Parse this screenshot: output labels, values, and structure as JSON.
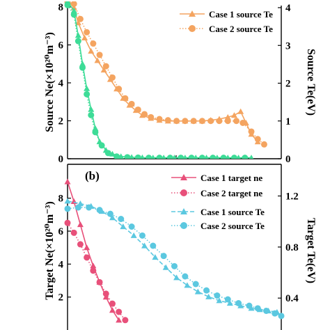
{
  "chart_data": [
    {
      "panel": "a",
      "type": "line",
      "title": "",
      "ylabel_left": "Source Ne(×10²⁰m⁻³)",
      "ylabel_right": "Source Te(eV)",
      "ylim_left": [
        0,
        8
      ],
      "ylim_right": [
        0,
        4
      ],
      "yticks_left": [
        "0",
        "2",
        "4",
        "6",
        "8"
      ],
      "yticks_right": [
        "0",
        "1",
        "2",
        "3",
        "4"
      ],
      "xlim": [
        0,
        1
      ],
      "legend": [
        {
          "label": "Case 1 source Te",
          "color": "#F4A460",
          "marker": "triangle",
          "dash": "solid"
        },
        {
          "label": "Case 2 source Te",
          "color": "#F4A460",
          "marker": "circle",
          "dash": "dotted"
        }
      ],
      "series": [
        {
          "axis": "right",
          "color": "#F4A460",
          "marker": "triangle",
          "dash": "solid",
          "points": [
            [
              0.0,
              4.2
            ],
            [
              0.03,
              4.0
            ],
            [
              0.05,
              3.6
            ],
            [
              0.08,
              3.2
            ],
            [
              0.11,
              2.85
            ],
            [
              0.14,
              2.6
            ],
            [
              0.17,
              2.35
            ],
            [
              0.2,
              2.1
            ],
            [
              0.23,
              1.85
            ],
            [
              0.26,
              1.6
            ],
            [
              0.29,
              1.42
            ],
            [
              0.32,
              1.28
            ],
            [
              0.35,
              1.15
            ],
            [
              0.39,
              1.07
            ],
            [
              0.43,
              1.02
            ],
            [
              0.47,
              1.0
            ],
            [
              0.51,
              1.0
            ],
            [
              0.55,
              1.0
            ],
            [
              0.59,
              1.0
            ],
            [
              0.63,
              1.0
            ],
            [
              0.67,
              1.02
            ],
            [
              0.71,
              1.05
            ],
            [
              0.75,
              1.1
            ],
            [
              0.78,
              1.15
            ],
            [
              0.81,
              1.25
            ],
            [
              0.835,
              0.95
            ],
            [
              0.86,
              0.65
            ],
            [
              0.89,
              0.45
            ]
          ]
        },
        {
          "axis": "right",
          "color": "#F4A460",
          "marker": "circle",
          "dash": "dotted",
          "points": [
            [
              0.0,
              4.15
            ],
            [
              0.03,
              4.1
            ],
            [
              0.06,
              3.7
            ],
            [
              0.09,
              3.35
            ],
            [
              0.12,
              3.05
            ],
            [
              0.15,
              2.75
            ],
            [
              0.18,
              2.45
            ],
            [
              0.21,
              2.15
            ],
            [
              0.24,
              1.85
            ],
            [
              0.27,
              1.6
            ],
            [
              0.3,
              1.45
            ],
            [
              0.33,
              1.3
            ],
            [
              0.36,
              1.18
            ],
            [
              0.39,
              1.1
            ],
            [
              0.43,
              1.05
            ],
            [
              0.47,
              1.02
            ],
            [
              0.51,
              1.0
            ],
            [
              0.55,
              1.0
            ],
            [
              0.59,
              1.0
            ],
            [
              0.63,
              1.0
            ],
            [
              0.67,
              1.0
            ],
            [
              0.71,
              1.0
            ],
            [
              0.75,
              1.0
            ],
            [
              0.79,
              1.0
            ],
            [
              0.82,
              0.95
            ],
            [
              0.86,
              0.72
            ],
            [
              0.89,
              0.52
            ],
            [
              0.92,
              0.38
            ]
          ]
        },
        {
          "axis": "left",
          "color": "#3DDC97",
          "marker": "triangle",
          "dash": "solid",
          "points": [
            [
              0.0,
              8.3
            ],
            [
              0.03,
              7.8
            ],
            [
              0.05,
              6.5
            ],
            [
              0.07,
              5.0
            ],
            [
              0.09,
              3.7
            ],
            [
              0.11,
              2.6
            ],
            [
              0.13,
              1.6
            ],
            [
              0.15,
              0.9
            ],
            [
              0.18,
              0.45
            ],
            [
              0.21,
              0.25
            ],
            [
              0.25,
              0.12
            ],
            [
              0.3,
              0.08
            ],
            [
              0.35,
              0.06
            ],
            [
              0.4,
              0.05
            ],
            [
              0.45,
              0.05
            ],
            [
              0.5,
              0.05
            ],
            [
              0.55,
              0.05
            ],
            [
              0.6,
              0.05
            ],
            [
              0.65,
              0.05
            ],
            [
              0.7,
              0.05
            ],
            [
              0.75,
              0.05
            ],
            [
              0.8,
              0.05
            ],
            [
              0.86,
              0.05
            ]
          ]
        },
        {
          "axis": "left",
          "color": "#3DDC97",
          "marker": "circle",
          "dash": "dotted",
          "points": [
            [
              0.0,
              8.1
            ],
            [
              0.03,
              7.6
            ],
            [
              0.05,
              6.2
            ],
            [
              0.07,
              4.8
            ],
            [
              0.09,
              3.4
            ],
            [
              0.11,
              2.3
            ],
            [
              0.13,
              1.4
            ],
            [
              0.16,
              0.7
            ],
            [
              0.19,
              0.3
            ],
            [
              0.23,
              0.12
            ],
            [
              0.28,
              0.08
            ],
            [
              0.33,
              0.06
            ],
            [
              0.38,
              0.05
            ],
            [
              0.43,
              0.05
            ],
            [
              0.48,
              0.05
            ],
            [
              0.53,
              0.05
            ],
            [
              0.58,
              0.05
            ],
            [
              0.63,
              0.05
            ],
            [
              0.68,
              0.05
            ],
            [
              0.73,
              0.05
            ],
            [
              0.78,
              0.05
            ],
            [
              0.83,
              0.05
            ]
          ]
        }
      ]
    },
    {
      "panel": "b",
      "type": "line",
      "title": "(b)",
      "ylabel_left": "Target Ne(×10²⁰m⁻³)",
      "ylabel_right": "Target Te(eV)",
      "ylim_left": [
        0,
        9
      ],
      "ylim_right": [
        0.15,
        1.47
      ],
      "yticks_left": [
        "2",
        "4",
        "6",
        "8"
      ],
      "yticks_right": [
        "0.4",
        "0.8",
        "1.2"
      ],
      "xlim": [
        0,
        1
      ],
      "legend": [
        {
          "label": "Case 1 target ne",
          "color": "#E8507A",
          "marker": "triangle",
          "dash": "solid"
        },
        {
          "label": "Case 2 target ne",
          "color": "#E8507A",
          "marker": "circle",
          "dash": "dotted"
        },
        {
          "label": "Case 1 source Te",
          "color": "#5BC8E0",
          "marker": "triangle",
          "dash": "dashed"
        },
        {
          "label": "Case 2 source Te",
          "color": "#5BC8E0",
          "marker": "circle",
          "dash": "dotted"
        }
      ],
      "series": [
        {
          "axis": "left",
          "color": "#E8507A",
          "marker": "triangle",
          "dash": "solid",
          "points": [
            [
              0.0,
              9.0
            ],
            [
              0.03,
              7.8
            ],
            [
              0.06,
              6.4
            ],
            [
              0.09,
              5.0
            ],
            [
              0.12,
              3.9
            ],
            [
              0.15,
              2.9
            ],
            [
              0.18,
              2.0
            ],
            [
              0.21,
              1.2
            ],
            [
              0.24,
              0.6
            ]
          ]
        },
        {
          "axis": "left",
          "color": "#E8507A",
          "marker": "circle",
          "dash": "dotted",
          "points": [
            [
              0.0,
              6.5
            ],
            [
              0.03,
              5.9
            ],
            [
              0.06,
              5.2
            ],
            [
              0.09,
              4.4
            ],
            [
              0.12,
              3.6
            ],
            [
              0.15,
              2.9
            ],
            [
              0.18,
              2.2
            ],
            [
              0.21,
              1.6
            ],
            [
              0.24,
              1.1
            ],
            [
              0.27,
              0.6
            ]
          ]
        },
        {
          "axis": "right",
          "color": "#5BC8E0",
          "marker": "triangle",
          "dash": "dashed",
          "points": [
            [
              0.0,
              1.16
            ],
            [
              0.06,
              1.14
            ],
            [
              0.11,
              1.12
            ],
            [
              0.16,
              1.08
            ],
            [
              0.21,
              1.03
            ],
            [
              0.26,
              0.96
            ],
            [
              0.31,
              0.89
            ],
            [
              0.36,
              0.81
            ],
            [
              0.41,
              0.72
            ],
            [
              0.46,
              0.64
            ],
            [
              0.51,
              0.56
            ],
            [
              0.56,
              0.5
            ],
            [
              0.61,
              0.45
            ],
            [
              0.66,
              0.41
            ],
            [
              0.71,
              0.38
            ],
            [
              0.76,
              0.36
            ],
            [
              0.81,
              0.34
            ],
            [
              0.86,
              0.32
            ],
            [
              0.9,
              0.31
            ],
            [
              0.94,
              0.3
            ],
            [
              0.98,
              0.29
            ]
          ]
        },
        {
          "axis": "right",
          "color": "#5BC8E0",
          "marker": "circle",
          "dash": "dotted",
          "points": [
            [
              0.0,
              1.1
            ],
            [
              0.05,
              1.11
            ],
            [
              0.1,
              1.11
            ],
            [
              0.15,
              1.09
            ],
            [
              0.2,
              1.06
            ],
            [
              0.25,
              1.02
            ],
            [
              0.3,
              0.96
            ],
            [
              0.35,
              0.89
            ],
            [
              0.4,
              0.81
            ],
            [
              0.45,
              0.73
            ],
            [
              0.5,
              0.65
            ],
            [
              0.55,
              0.57
            ],
            [
              0.6,
              0.51
            ],
            [
              0.65,
              0.46
            ],
            [
              0.7,
              0.42
            ],
            [
              0.75,
              0.39
            ],
            [
              0.8,
              0.36
            ],
            [
              0.85,
              0.34
            ],
            [
              0.89,
              0.32
            ],
            [
              0.93,
              0.3
            ],
            [
              0.97,
              0.28
            ],
            [
              1.0,
              0.26
            ]
          ]
        }
      ]
    }
  ]
}
